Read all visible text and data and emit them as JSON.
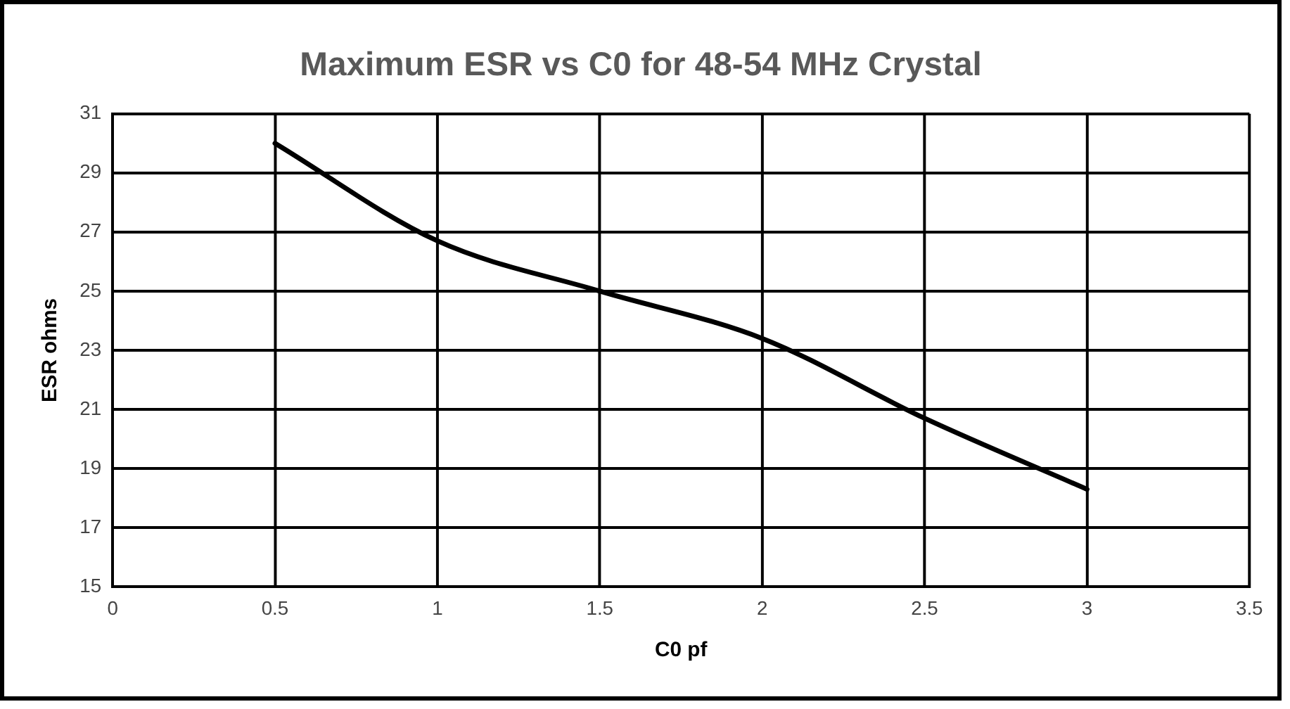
{
  "chart_data": {
    "type": "line",
    "title": "Maximum ESR vs C0 for 48-54 MHz Crystal",
    "xlabel": "C0 pf",
    "ylabel": "ESR ohms",
    "x": [
      0.5,
      1,
      1.5,
      2,
      2.5,
      3
    ],
    "series": [
      {
        "color": "#000000",
        "values": [
          30,
          26.7,
          25,
          23.4,
          20.7,
          18.3
        ]
      }
    ],
    "xlim": [
      0,
      3.5
    ],
    "xticks": [
      0,
      0.5,
      1,
      1.5,
      2,
      2.5,
      3,
      3.5
    ],
    "ylim": [
      15,
      31
    ],
    "yticks": [
      15,
      17,
      19,
      21,
      23,
      25,
      27,
      29,
      31
    ],
    "grid": true,
    "legend": false,
    "marker": "none",
    "line_style": "solid"
  }
}
